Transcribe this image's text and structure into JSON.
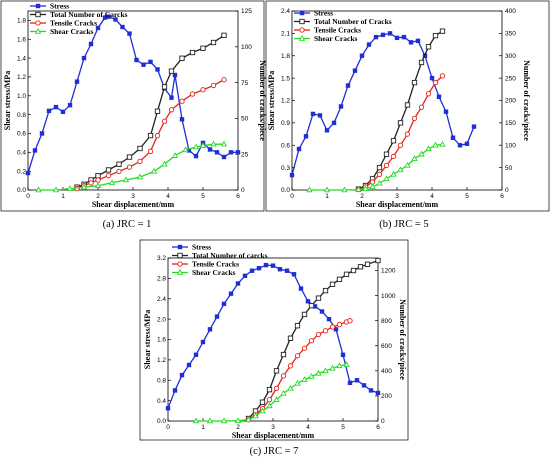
{
  "figure": {
    "caption_a": "(a) JRC = 1",
    "caption_b": "(b) JRC = 5",
    "caption_c": "(c) JRC = 7"
  },
  "colors": {
    "stress": "#1f2fd6",
    "total": "#222222",
    "tensile": "#e3241b",
    "shear": "#22dd22"
  },
  "chart_data": [
    {
      "id": "a",
      "type": "line",
      "xlabel": "Shear displacement/mm",
      "ylabel": "Shear stress/MPa",
      "y2label": "Number of cracks/piece",
      "xlim": [
        0,
        6
      ],
      "ylim": [
        0,
        1.9
      ],
      "y2lim": [
        0,
        125
      ],
      "xticks": [
        0,
        1,
        2,
        3,
        4,
        5,
        6
      ],
      "yticks": [
        0.0,
        0.2,
        0.4,
        0.6,
        0.8,
        1.0,
        1.2,
        1.4,
        1.6,
        1.8
      ],
      "y2ticks": [
        0,
        25,
        50,
        75,
        100,
        125
      ],
      "legend": [
        "Stress",
        "Total Number of Carcks",
        "Tensile Cracks",
        "Shear Cracks"
      ],
      "series": [
        {
          "name": "Stress",
          "axis": "left",
          "x": [
            0,
            0.2,
            0.4,
            0.6,
            0.8,
            1.0,
            1.2,
            1.4,
            1.6,
            1.8,
            2.0,
            2.2,
            2.3,
            2.5,
            2.7,
            2.9,
            3.1,
            3.3,
            3.5,
            3.7,
            3.9,
            4.1,
            4.2,
            4.4,
            4.6,
            4.8,
            5.0,
            5.2,
            5.4,
            5.6,
            5.8,
            6.0
          ],
          "y": [
            0.18,
            0.42,
            0.6,
            0.84,
            0.88,
            0.83,
            0.9,
            1.15,
            1.4,
            1.55,
            1.72,
            1.83,
            1.84,
            1.81,
            1.73,
            1.66,
            1.38,
            1.33,
            1.36,
            1.28,
            1.08,
            0.98,
            1.22,
            0.75,
            0.42,
            0.36,
            0.5,
            0.43,
            0.4,
            0.35,
            0.4,
            0.4
          ]
        },
        {
          "name": "Total Number of Carcks",
          "axis": "right",
          "x": [
            1.4,
            1.6,
            1.8,
            2.0,
            2.3,
            2.6,
            2.9,
            3.2,
            3.5,
            3.7,
            3.9,
            4.1,
            4.4,
            4.7,
            5.0,
            5.3,
            5.6
          ],
          "y": [
            2,
            4,
            7,
            10,
            14,
            18,
            23,
            29,
            38,
            55,
            72,
            83,
            92,
            96,
            99,
            103,
            108
          ]
        },
        {
          "name": "Tensile Cracks",
          "axis": "right",
          "x": [
            1.4,
            1.6,
            1.8,
            2.0,
            2.3,
            2.6,
            2.9,
            3.2,
            3.5,
            3.7,
            3.9,
            4.1,
            4.4,
            4.7,
            5.0,
            5.3,
            5.6
          ],
          "y": [
            1,
            3,
            5,
            7,
            10,
            13,
            16,
            20,
            27,
            38,
            48,
            56,
            62,
            67,
            70,
            73,
            77
          ]
        },
        {
          "name": "Shear Cracks",
          "axis": "right",
          "x": [
            0.3,
            0.8,
            1.2,
            1.6,
            2.0,
            2.4,
            2.8,
            3.2,
            3.6,
            3.9,
            4.2,
            4.5,
            4.8,
            5.0,
            5.3,
            5.6
          ],
          "y": [
            0,
            0,
            1,
            2,
            3,
            5,
            7,
            9,
            13,
            18,
            24,
            28,
            30,
            31,
            32,
            32
          ]
        }
      ]
    },
    {
      "id": "b",
      "type": "line",
      "xlabel": "Shear displacement/mm",
      "ylabel": "Shear stress/MPa",
      "y2label": "Number of cracks/piece",
      "xlim": [
        0,
        6
      ],
      "ylim": [
        0,
        2.4
      ],
      "y2lim": [
        0,
        400
      ],
      "xticks": [
        0,
        1,
        2,
        3,
        4,
        5,
        6
      ],
      "yticks": [
        0.0,
        0.3,
        0.6,
        0.9,
        1.2,
        1.5,
        1.8,
        2.1,
        2.4
      ],
      "y2ticks": [
        0,
        50,
        100,
        150,
        200,
        250,
        300,
        350,
        400
      ],
      "legend": [
        "Stress",
        "Total Number of Cracks",
        "Tensile Cracks",
        "Shear Cracks"
      ],
      "series": [
        {
          "name": "Stress",
          "axis": "left",
          "x": [
            0,
            0.2,
            0.4,
            0.6,
            0.8,
            1.0,
            1.2,
            1.4,
            1.6,
            1.8,
            2.0,
            2.2,
            2.4,
            2.6,
            2.8,
            3.0,
            3.2,
            3.4,
            3.6,
            3.8,
            4.0,
            4.2,
            4.4,
            4.6,
            4.8,
            5.0,
            5.2
          ],
          "y": [
            0.2,
            0.55,
            0.72,
            1.02,
            1.0,
            0.8,
            0.9,
            1.12,
            1.4,
            1.6,
            1.8,
            1.95,
            2.05,
            2.08,
            2.1,
            2.04,
            2.05,
            1.98,
            2.0,
            1.8,
            1.5,
            1.25,
            1.05,
            0.7,
            0.6,
            0.62,
            0.85
          ]
        },
        {
          "name": "Total Number of Cracks",
          "axis": "right",
          "x": [
            1.9,
            2.1,
            2.3,
            2.5,
            2.7,
            2.9,
            3.1,
            3.3,
            3.5,
            3.7,
            3.9,
            4.1,
            4.3
          ],
          "y": [
            2,
            10,
            25,
            50,
            80,
            110,
            150,
            190,
            240,
            285,
            320,
            345,
            355
          ]
        },
        {
          "name": "Tensile Cracks",
          "axis": "right",
          "x": [
            1.9,
            2.1,
            2.3,
            2.5,
            2.7,
            2.9,
            3.1,
            3.3,
            3.5,
            3.7,
            3.9,
            4.1,
            4.3
          ],
          "y": [
            1,
            7,
            18,
            35,
            55,
            75,
            100,
            125,
            160,
            185,
            215,
            240,
            255
          ]
        },
        {
          "name": "Shear Cracks",
          "axis": "right",
          "x": [
            0.5,
            1.0,
            1.5,
            1.9,
            2.1,
            2.3,
            2.5,
            2.7,
            2.9,
            3.1,
            3.3,
            3.5,
            3.7,
            3.9,
            4.1,
            4.3
          ],
          "y": [
            0,
            0,
            0,
            1,
            3,
            7,
            15,
            25,
            35,
            45,
            55,
            70,
            80,
            92,
            100,
            102
          ]
        }
      ]
    },
    {
      "id": "c",
      "type": "line",
      "xlabel": "Shear displacement/mm",
      "ylabel": "Shear stress/MPa",
      "y2label": "Number of cracks/piece",
      "xlim": [
        0,
        6
      ],
      "ylim": [
        0,
        3.2
      ],
      "y2lim": [
        0,
        1300
      ],
      "xticks": [
        0,
        1,
        2,
        3,
        4,
        5,
        6
      ],
      "yticks": [
        0.0,
        0.4,
        0.8,
        1.2,
        1.6,
        2.0,
        2.4,
        2.8,
        3.2
      ],
      "y2ticks": [
        0,
        200,
        400,
        600,
        800,
        1000,
        1200
      ],
      "legend": [
        "Stress",
        "Total Number of carcks",
        "Tensile Cracks",
        "Shear Cracks"
      ],
      "series": [
        {
          "name": "Stress",
          "axis": "left",
          "x": [
            0,
            0.2,
            0.4,
            0.6,
            0.8,
            1.0,
            1.2,
            1.4,
            1.6,
            1.8,
            2.0,
            2.2,
            2.4,
            2.6,
            2.8,
            3.0,
            3.2,
            3.4,
            3.6,
            3.8,
            4.0,
            4.2,
            4.4,
            4.6,
            4.8,
            5.0,
            5.2,
            5.4,
            5.6,
            5.8,
            6.0
          ],
          "y": [
            0.25,
            0.6,
            0.9,
            1.1,
            1.3,
            1.55,
            1.8,
            2.05,
            2.3,
            2.5,
            2.7,
            2.85,
            2.95,
            3.0,
            3.06,
            3.05,
            2.98,
            2.95,
            2.88,
            2.6,
            2.35,
            2.25,
            2.15,
            2.0,
            1.8,
            1.3,
            0.75,
            0.8,
            0.7,
            0.6,
            0.55
          ]
        },
        {
          "name": "Total Number of carcks",
          "axis": "right",
          "x": [
            2.3,
            2.5,
            2.7,
            2.9,
            3.1,
            3.3,
            3.5,
            3.7,
            3.9,
            4.1,
            4.3,
            4.5,
            4.7,
            4.9,
            5.1,
            5.3,
            5.5,
            5.7,
            6.0
          ],
          "y": [
            20,
            80,
            150,
            250,
            400,
            530,
            660,
            760,
            850,
            920,
            980,
            1040,
            1090,
            1130,
            1170,
            1200,
            1230,
            1250,
            1280
          ]
        },
        {
          "name": "Tensile Cracks",
          "axis": "right",
          "x": [
            2.3,
            2.5,
            2.7,
            2.9,
            3.1,
            3.3,
            3.5,
            3.7,
            3.9,
            4.1,
            4.3,
            4.5,
            4.7,
            4.9,
            5.1,
            5.2
          ],
          "y": [
            10,
            50,
            100,
            170,
            260,
            360,
            440,
            520,
            580,
            640,
            690,
            720,
            750,
            770,
            790,
            800
          ]
        },
        {
          "name": "Shear Cracks",
          "axis": "right",
          "x": [
            0.8,
            1.2,
            1.6,
            2.0,
            2.3,
            2.5,
            2.7,
            2.9,
            3.1,
            3.3,
            3.5,
            3.7,
            3.9,
            4.1,
            4.3,
            4.5,
            4.7,
            4.9,
            5.1
          ],
          "y": [
            0,
            0,
            0,
            2,
            10,
            40,
            80,
            120,
            170,
            220,
            260,
            300,
            330,
            355,
            380,
            400,
            420,
            440,
            450
          ]
        }
      ]
    }
  ]
}
